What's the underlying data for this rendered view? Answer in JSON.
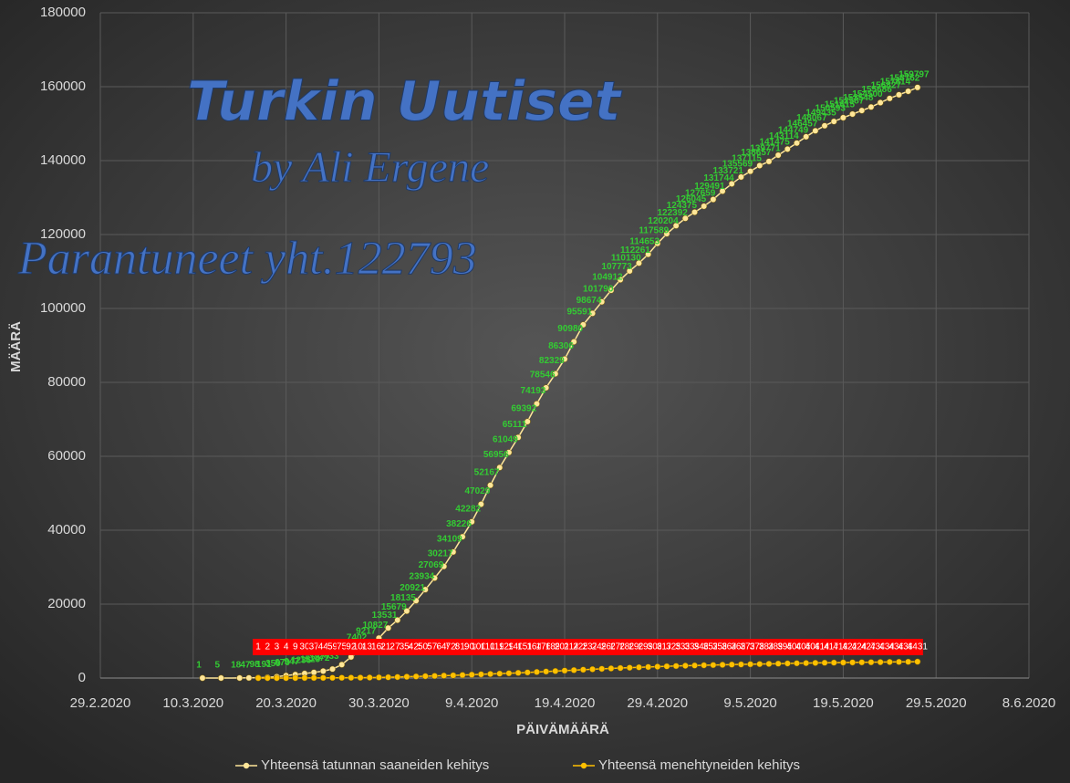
{
  "chart_data": {
    "type": "line",
    "annotations": [
      "Turkin Uutiset",
      "by Ali Ergene",
      "Parantuneet yht.122793"
    ],
    "xlabel": "PÄIVÄMÄÄRÄ",
    "ylabel": "MÄÄRÄ",
    "xlim": [
      "29.2.2020",
      "8.6.2020"
    ],
    "xticks": [
      "29.2.2020",
      "10.3.2020",
      "20.3.2020",
      "30.3.2020",
      "9.4.2020",
      "19.4.2020",
      "29.4.2020",
      "9.5.2020",
      "19.5.2020",
      "29.5.2020",
      "8.6.2020"
    ],
    "ylim": [
      0,
      180000
    ],
    "yticks": [
      0,
      20000,
      40000,
      60000,
      80000,
      100000,
      120000,
      140000,
      160000,
      180000
    ],
    "grid": true,
    "legend": "bottom",
    "data_labels": true,
    "series": [
      {
        "name": "Yhteensä tatunnan saaneiden kehitys",
        "color": "#ffe699",
        "label_color": "#33cc33",
        "x": [
          "11.3.2020",
          "13.3.2020",
          "15.3.2020",
          "16.3.2020",
          "17.3.2020",
          "18.3.2020",
          "19.3.2020",
          "20.3.2020",
          "21.3.2020",
          "22.3.2020",
          "23.3.2020",
          "24.3.2020",
          "25.3.2020",
          "26.3.2020",
          "27.3.2020",
          "28.3.2020",
          "29.3.2020",
          "30.3.2020",
          "31.3.2020",
          "1.4.2020",
          "2.4.2020",
          "3.4.2020",
          "4.4.2020",
          "5.4.2020",
          "6.4.2020",
          "7.4.2020",
          "8.4.2020",
          "9.4.2020",
          "10.4.2020",
          "11.4.2020",
          "12.4.2020",
          "13.4.2020",
          "14.4.2020",
          "15.4.2020",
          "16.4.2020",
          "17.4.2020",
          "18.4.2020",
          "19.4.2020",
          "20.4.2020",
          "21.4.2020",
          "22.4.2020",
          "23.4.2020",
          "24.4.2020",
          "25.4.2020",
          "26.4.2020",
          "27.4.2020",
          "28.4.2020",
          "29.4.2020",
          "30.4.2020",
          "1.5.2020",
          "2.5.2020",
          "3.5.2020",
          "4.5.2020",
          "5.5.2020",
          "6.5.2020",
          "7.5.2020",
          "8.5.2020",
          "9.5.2020",
          "10.5.2020",
          "11.5.2020",
          "12.5.2020",
          "13.5.2020",
          "14.5.2020",
          "15.5.2020",
          "16.5.2020",
          "17.5.2020",
          "18.5.2020",
          "19.5.2020",
          "20.5.2020",
          "21.5.2020",
          "22.5.2020",
          "23.5.2020",
          "24.5.2020",
          "25.5.2020",
          "26.5.2020",
          "27.5.2020"
        ],
        "values": [
          1,
          5,
          18,
          47,
          98,
          191,
          359,
          670,
          947,
          1236,
          1529,
          1872,
          2433,
          3629,
          5698,
          7402,
          9217,
          10827,
          13531,
          15679,
          18135,
          20921,
          23934,
          27069,
          30217,
          34109,
          38226,
          42282,
          47029,
          52167,
          56956,
          61049,
          65111,
          69392,
          74193,
          78546,
          82329,
          86306,
          90980,
          95591,
          98674,
          101790,
          104912,
          107773,
          110130,
          112261,
          114653,
          117589,
          120204,
          122392,
          124375,
          126045,
          127659,
          129491,
          131744,
          133721,
          135569,
          137115,
          138657,
          139771,
          141475,
          143114,
          144749,
          146457,
          148067,
          149435,
          150593,
          151615,
          152587,
          153548,
          154500,
          155686,
          156827,
          157814,
          158762,
          159797
        ]
      },
      {
        "name": "Yhteensä menehtyneiden kehitys",
        "color": "#ffc000",
        "label_color": "#ff0000",
        "x": [
          "17.3.2020",
          "18.3.2020",
          "19.3.2020",
          "20.3.2020",
          "21.3.2020",
          "22.3.2020",
          "23.3.2020",
          "24.3.2020",
          "25.3.2020",
          "26.3.2020",
          "27.3.2020",
          "28.3.2020",
          "29.3.2020",
          "30.3.2020",
          "31.3.2020",
          "1.4.2020",
          "2.4.2020",
          "3.4.2020",
          "4.4.2020",
          "5.4.2020",
          "6.4.2020",
          "7.4.2020",
          "8.4.2020",
          "9.4.2020",
          "10.4.2020",
          "11.4.2020",
          "12.4.2020",
          "13.4.2020",
          "14.4.2020",
          "15.4.2020",
          "16.4.2020",
          "17.4.2020",
          "18.4.2020",
          "19.4.2020",
          "20.4.2020",
          "21.4.2020",
          "22.4.2020",
          "23.4.2020",
          "24.4.2020",
          "25.4.2020",
          "26.4.2020",
          "27.4.2020",
          "28.4.2020",
          "29.4.2020",
          "30.4.2020",
          "1.5.2020",
          "2.5.2020",
          "3.5.2020",
          "4.5.2020",
          "5.5.2020",
          "6.5.2020",
          "7.5.2020",
          "8.5.2020",
          "9.5.2020",
          "10.5.2020",
          "11.5.2020",
          "12.5.2020",
          "13.5.2020",
          "14.5.2020",
          "15.5.2020",
          "16.5.2020",
          "17.5.2020",
          "18.5.2020",
          "19.5.2020",
          "20.5.2020",
          "21.5.2020",
          "22.5.2020",
          "23.5.2020",
          "24.5.2020",
          "25.5.2020",
          "26.5.2020",
          "27.5.2020"
        ],
        "values": [
          1,
          2,
          3,
          4,
          9,
          30,
          37,
          44,
          59,
          75,
          92,
          108,
          131,
          168,
          214,
          277,
          356,
          425,
          501,
          574,
          649,
          725,
          812,
          908,
          1006,
          1101,
          1198,
          1296,
          1403,
          1518,
          1643,
          1769,
          1890,
          2017,
          2140,
          2259,
          2376,
          2491,
          2600,
          2706,
          2805,
          2900,
          2992,
          3081,
          3174,
          3258,
          3336,
          3397,
          3461,
          3520,
          3584,
          3641,
          3689,
          3739,
          3786,
          3841,
          3894,
          3952,
          4007,
          4055,
          4096,
          4140,
          4171,
          4199,
          4222,
          4249,
          4276,
          4308,
          4340,
          4369,
          4397,
          4431
        ]
      }
    ]
  }
}
